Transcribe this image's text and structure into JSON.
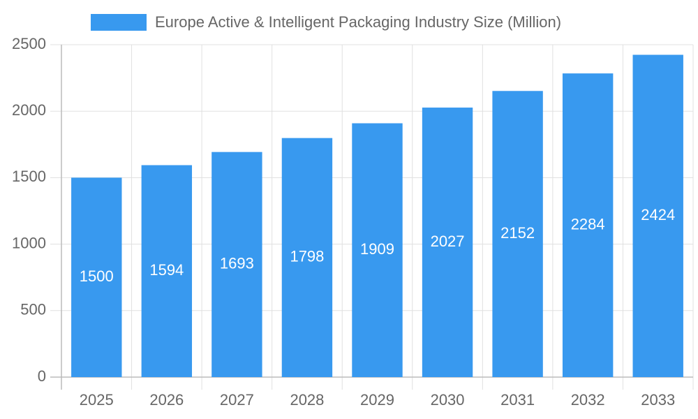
{
  "chart_data": {
    "type": "bar",
    "categories": [
      "2025",
      "2026",
      "2027",
      "2028",
      "2029",
      "2030",
      "2031",
      "2032",
      "2033"
    ],
    "series": [
      {
        "name": "Europe Active & Intelligent Packaging Industry Size (Million)",
        "color": "#3899ef",
        "values": [
          1500,
          1594,
          1693,
          1798,
          1909,
          2027,
          2152,
          2284,
          2424
        ]
      }
    ],
    "ylim": [
      0,
      2500
    ],
    "yticks": [
      0,
      500,
      1000,
      1500,
      2000,
      2500
    ],
    "grid": true,
    "legend": "top"
  }
}
